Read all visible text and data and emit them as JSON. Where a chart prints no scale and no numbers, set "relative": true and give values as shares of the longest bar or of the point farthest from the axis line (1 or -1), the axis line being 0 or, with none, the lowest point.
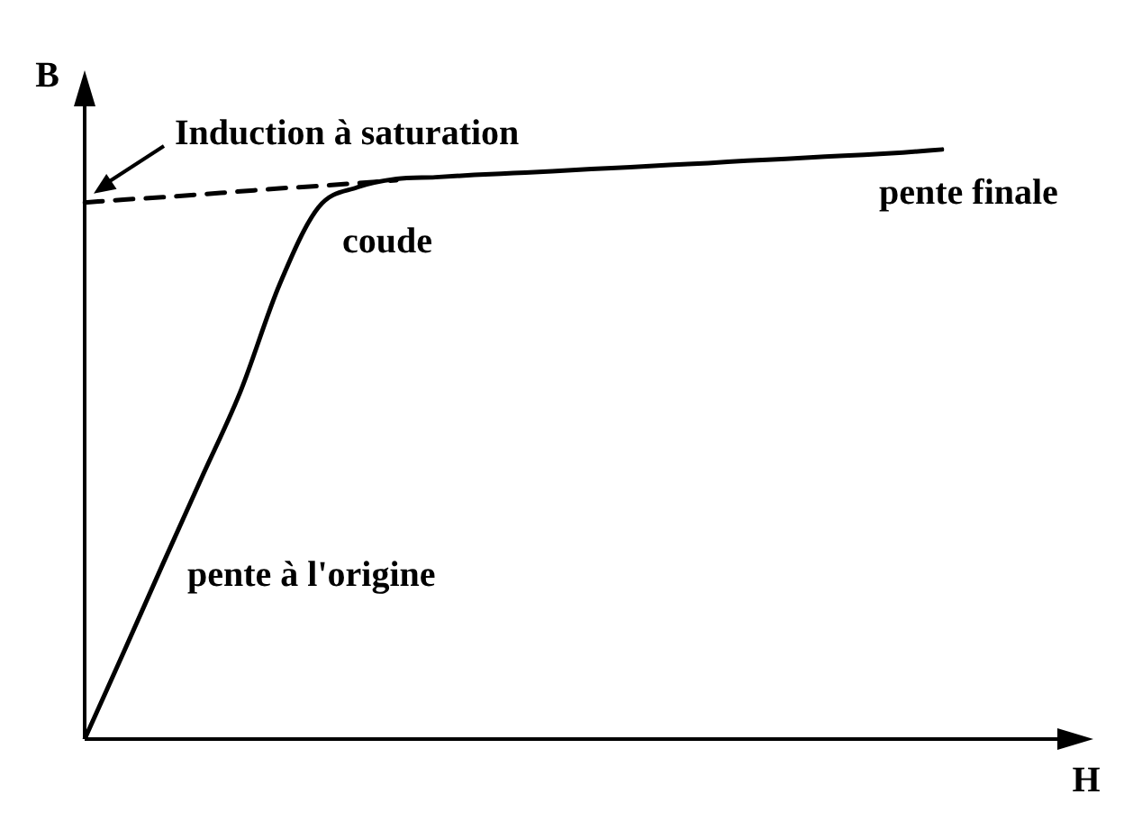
{
  "chart_data": {
    "type": "line",
    "relative": true,
    "xlabel": "H",
    "ylabel": "B",
    "legend": false,
    "marker": "none",
    "categories": [
      null,
      null,
      null,
      null,
      null,
      null,
      null,
      null,
      null,
      null,
      null,
      null,
      null,
      null,
      null,
      null,
      null,
      null,
      null,
      null,
      null,
      null,
      null
    ],
    "series": [
      {
        "color": "#000000",
        "line_style": "solid",
        "values": [
          0,
          0.147,
          0.296,
          0.443,
          0.59,
          0.771,
          0.902,
          0.936,
          0.95,
          0.953,
          0.957,
          0.96,
          0.963,
          0.967,
          0.97,
          0.974,
          0.977,
          0.981,
          0.984,
          0.988,
          0.991,
          0.995,
          1
        ]
      },
      {
        "color": "#000000",
        "line_style": "dashed",
        "values": [
          0.91,
          0.915,
          0.919,
          0.924,
          0.929,
          0.934,
          0.938,
          0.943,
          0.948,
          null,
          null,
          null,
          null,
          null,
          null,
          null,
          null,
          null,
          null,
          null,
          null,
          null,
          null
        ]
      }
    ],
    "annotations": [
      "Induction à saturation",
      "coude",
      "pente finale",
      "pente à l'origine"
    ]
  }
}
